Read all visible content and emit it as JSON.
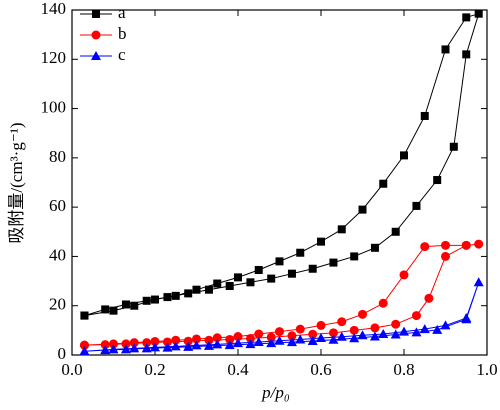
{
  "chart_data": {
    "type": "line",
    "xlabel": "p/p₀",
    "ylabel": "吸附量/(cm³·g⁻¹)",
    "xlim": [
      0,
      1
    ],
    "ylim": [
      0,
      140
    ],
    "xticks": [
      {
        "value": 0,
        "label": "0.0"
      },
      {
        "value": 0.2,
        "label": "0.2"
      },
      {
        "value": 0.4,
        "label": "0.4"
      },
      {
        "value": 0.6,
        "label": "0.6"
      },
      {
        "value": 0.8,
        "label": "0.8"
      },
      {
        "value": 1,
        "label": "1.0"
      }
    ],
    "yticks": [
      0,
      20,
      40,
      60,
      80,
      100,
      120,
      140
    ],
    "legend": "upper-left",
    "series": [
      {
        "name": "a",
        "color": "#000000",
        "marker": "square",
        "x": [
          0.03,
          0.08,
          0.13,
          0.18,
          0.23,
          0.28,
          0.33,
          0.38,
          0.43,
          0.48,
          0.53,
          0.58,
          0.63,
          0.68,
          0.73,
          0.78,
          0.83,
          0.88,
          0.92,
          0.95,
          0.98,
          0.95,
          0.9,
          0.85,
          0.8,
          0.75,
          0.7,
          0.65,
          0.6,
          0.55,
          0.5,
          0.45,
          0.4,
          0.35,
          0.3,
          0.25,
          0.2,
          0.15,
          0.1,
          0.03
        ],
        "values": [
          16,
          18.5,
          20.5,
          22,
          23.5,
          25,
          26.5,
          28,
          29.5,
          31,
          33,
          35,
          37.5,
          40,
          43.5,
          50,
          60.5,
          71,
          84.5,
          122,
          138.5,
          137,
          124,
          97,
          81,
          69.5,
          59,
          51,
          46,
          41.5,
          38,
          34.5,
          31.5,
          29,
          26.5,
          24,
          22.5,
          20,
          18,
          16
        ]
      },
      {
        "name": "b",
        "color": "#ff0000",
        "marker": "circle",
        "x": [
          0.03,
          0.08,
          0.13,
          0.18,
          0.23,
          0.28,
          0.33,
          0.38,
          0.43,
          0.48,
          0.53,
          0.58,
          0.63,
          0.68,
          0.73,
          0.78,
          0.83,
          0.86,
          0.9,
          0.95,
          0.98,
          0.95,
          0.9,
          0.85,
          0.8,
          0.75,
          0.7,
          0.65,
          0.6,
          0.55,
          0.5,
          0.45,
          0.4,
          0.35,
          0.3,
          0.25,
          0.2,
          0.15,
          0.1,
          0.03
        ],
        "values": [
          4,
          4.2,
          4.5,
          5,
          5.3,
          5.6,
          6,
          6.3,
          6.7,
          7.2,
          7.8,
          8.4,
          9,
          10,
          11,
          12.5,
          16,
          23,
          40,
          44.5,
          45,
          44.5,
          44.5,
          44,
          32.5,
          21,
          16.5,
          13.5,
          12,
          10.5,
          9.5,
          8.5,
          7.5,
          7,
          6.5,
          6,
          5.5,
          5,
          4.5,
          4
        ]
      },
      {
        "name": "c",
        "color": "#0000ff",
        "marker": "triangle",
        "x": [
          0.03,
          0.08,
          0.13,
          0.18,
          0.23,
          0.28,
          0.33,
          0.38,
          0.43,
          0.48,
          0.53,
          0.58,
          0.63,
          0.68,
          0.73,
          0.78,
          0.83,
          0.88,
          0.95,
          0.98,
          0.95,
          0.9,
          0.85,
          0.8,
          0.75,
          0.7,
          0.65,
          0.6,
          0.55,
          0.5,
          0.45,
          0.4,
          0.35,
          0.3,
          0.25,
          0.2,
          0.15,
          0.1,
          0.03
        ],
        "values": [
          1.5,
          2,
          2.3,
          2.7,
          3,
          3.3,
          3.7,
          4,
          4.4,
          4.8,
          5.2,
          5.7,
          6.2,
          6.8,
          7.5,
          8.3,
          9.2,
          10.2,
          14.5,
          29.5,
          15,
          12,
          10.5,
          9.5,
          8.5,
          8,
          7.4,
          6.9,
          6.3,
          5.8,
          5.3,
          4.8,
          4.3,
          3.9,
          3.5,
          3.1,
          2.7,
          2.3,
          1.5
        ]
      }
    ]
  }
}
